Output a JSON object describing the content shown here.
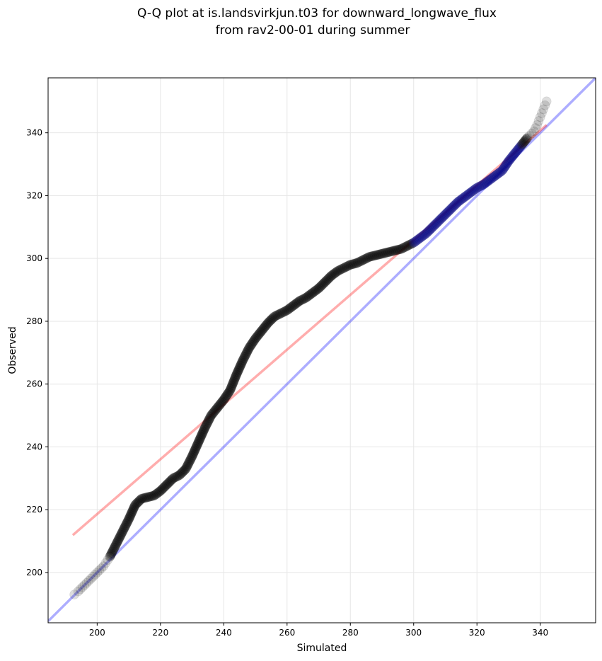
{
  "chart_data": {
    "type": "scatter",
    "title_lines": [
      "Q-Q plot at is.landsvirkjun.t03 for downward_longwave_flux",
      "from rav2-00-01 during summer"
    ],
    "xlabel": "Simulated",
    "ylabel": "Observed",
    "xlim": [
      184.5,
      357.5
    ],
    "ylim": [
      184,
      357.5
    ],
    "xticks": [
      200,
      220,
      240,
      260,
      280,
      300,
      320,
      340
    ],
    "yticks": [
      200,
      220,
      240,
      260,
      280,
      300,
      320,
      340
    ],
    "grid": true,
    "colors": {
      "points": "#000000",
      "identity_line": "#0000ff",
      "fit_line": "#ff0000",
      "points_above_fit": "#000000",
      "points_near_top": "#000080"
    },
    "lines": [
      {
        "kind": "one-to-one",
        "x": [
          184.5,
          357.5
        ],
        "y": [
          184.5,
          357.5
        ],
        "color": "#0000ff"
      },
      {
        "kind": "fit",
        "x": [
          192.3,
          342
        ],
        "y": [
          211.9,
          342.5
        ],
        "color": "#ff0000"
      }
    ],
    "quantile_curve": {
      "x": [
        192.8,
        194,
        196,
        198,
        200,
        202,
        204,
        206,
        208,
        210,
        212,
        214,
        216,
        218,
        220,
        222,
        224,
        226,
        228,
        230,
        232,
        234,
        236,
        238,
        240,
        242,
        244,
        246,
        248,
        250,
        252,
        254,
        256,
        258,
        260,
        262,
        264,
        266,
        268,
        270,
        272,
        274,
        276,
        278,
        280,
        282,
        284,
        286,
        288,
        290,
        292,
        294,
        296,
        298,
        300,
        302,
        304,
        306,
        308,
        310,
        312,
        314,
        316,
        318,
        320,
        322,
        324,
        326,
        328,
        330,
        332,
        334,
        336,
        338,
        339,
        340,
        341,
        342
      ],
      "y": [
        193,
        194,
        196,
        198,
        200,
        202,
        205,
        209,
        213,
        217,
        221.5,
        223.5,
        224,
        224.5,
        226,
        228,
        230,
        231,
        233,
        237,
        241.5,
        246,
        250,
        252.5,
        255,
        258,
        263,
        267.5,
        271.5,
        274.5,
        277,
        279.5,
        281.5,
        282.5,
        283.5,
        285,
        286.5,
        287.5,
        289,
        290.5,
        292.5,
        294.5,
        296,
        297,
        298,
        298.5,
        299.5,
        300.5,
        301,
        301.5,
        302,
        302.5,
        303,
        304,
        305,
        306.5,
        308,
        310,
        312,
        314,
        316,
        318,
        319.5,
        321,
        322.5,
        323.5,
        325,
        326.5,
        328,
        331,
        333.5,
        336,
        338.5,
        340.5,
        342.5,
        345,
        347.5,
        350
      ]
    }
  }
}
